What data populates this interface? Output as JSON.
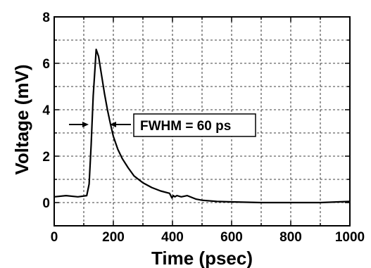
{
  "chart_data": {
    "type": "line",
    "title": "",
    "xlabel": "Time (psec)",
    "ylabel": "Voltage (mV)",
    "xlim": [
      0,
      1000
    ],
    "ylim": [
      -1,
      8
    ],
    "xticks": [
      "0",
      "200",
      "400",
      "600",
      "800",
      "1000"
    ],
    "yticks": [
      "0",
      "2",
      "4",
      "6",
      "8"
    ],
    "grid": true,
    "annotation": "FWHM = 60 ps",
    "series": [
      {
        "x": [
          0,
          40,
          80,
          110,
          118,
          125,
          132,
          139,
          142,
          150,
          160,
          170,
          180,
          190,
          200,
          215,
          230,
          250,
          270,
          300,
          330,
          360,
          390,
          398,
          403,
          408,
          415,
          430,
          450,
          480,
          500,
          550,
          600,
          700,
          800,
          900,
          1000
        ],
        "y": [
          0.25,
          0.3,
          0.25,
          0.3,
          0.8,
          2.5,
          4.6,
          6.0,
          6.6,
          6.3,
          5.5,
          4.7,
          4.0,
          3.4,
          2.85,
          2.3,
          1.9,
          1.5,
          1.15,
          0.85,
          0.65,
          0.5,
          0.4,
          0.2,
          0.3,
          0.25,
          0.3,
          0.25,
          0.3,
          0.15,
          0.1,
          0.05,
          0.03,
          0.0,
          0.0,
          0.0,
          0.05
        ]
      }
    ]
  }
}
